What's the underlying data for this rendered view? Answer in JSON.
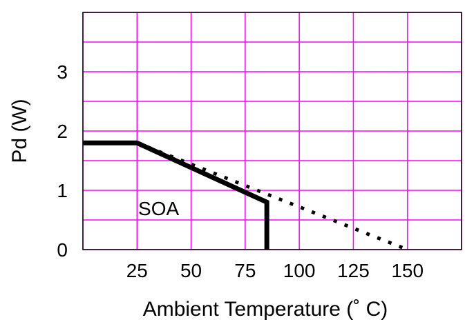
{
  "chart_data": {
    "type": "line",
    "title": "",
    "xlabel": "Ambient Temperature (˚ C)",
    "ylabel": "Pd (W)",
    "xlim": [
      0,
      175
    ],
    "ylim": [
      0,
      4
    ],
    "x_ticks": [
      25,
      50,
      75,
      100,
      125,
      150
    ],
    "y_ticks": [
      0,
      1,
      2,
      3
    ],
    "x_grid": [
      0,
      25,
      50,
      75,
      100,
      125,
      150,
      175
    ],
    "y_grid": [
      0,
      0.5,
      1,
      1.5,
      2,
      2.5,
      3,
      3.5,
      4
    ],
    "grid": true,
    "grid_color": "#ff00ff",
    "series": [
      {
        "style": "solid",
        "color": "#000000",
        "x": [
          0,
          25,
          85,
          85
        ],
        "y": [
          1.8,
          1.8,
          0.8,
          0
        ]
      },
      {
        "style": "dotted",
        "color": "#000000",
        "x": [
          25,
          150
        ],
        "y": [
          1.8,
          0
        ]
      }
    ],
    "annotations": [
      {
        "text": "SOA",
        "x": 35,
        "y": 0.58
      }
    ]
  }
}
